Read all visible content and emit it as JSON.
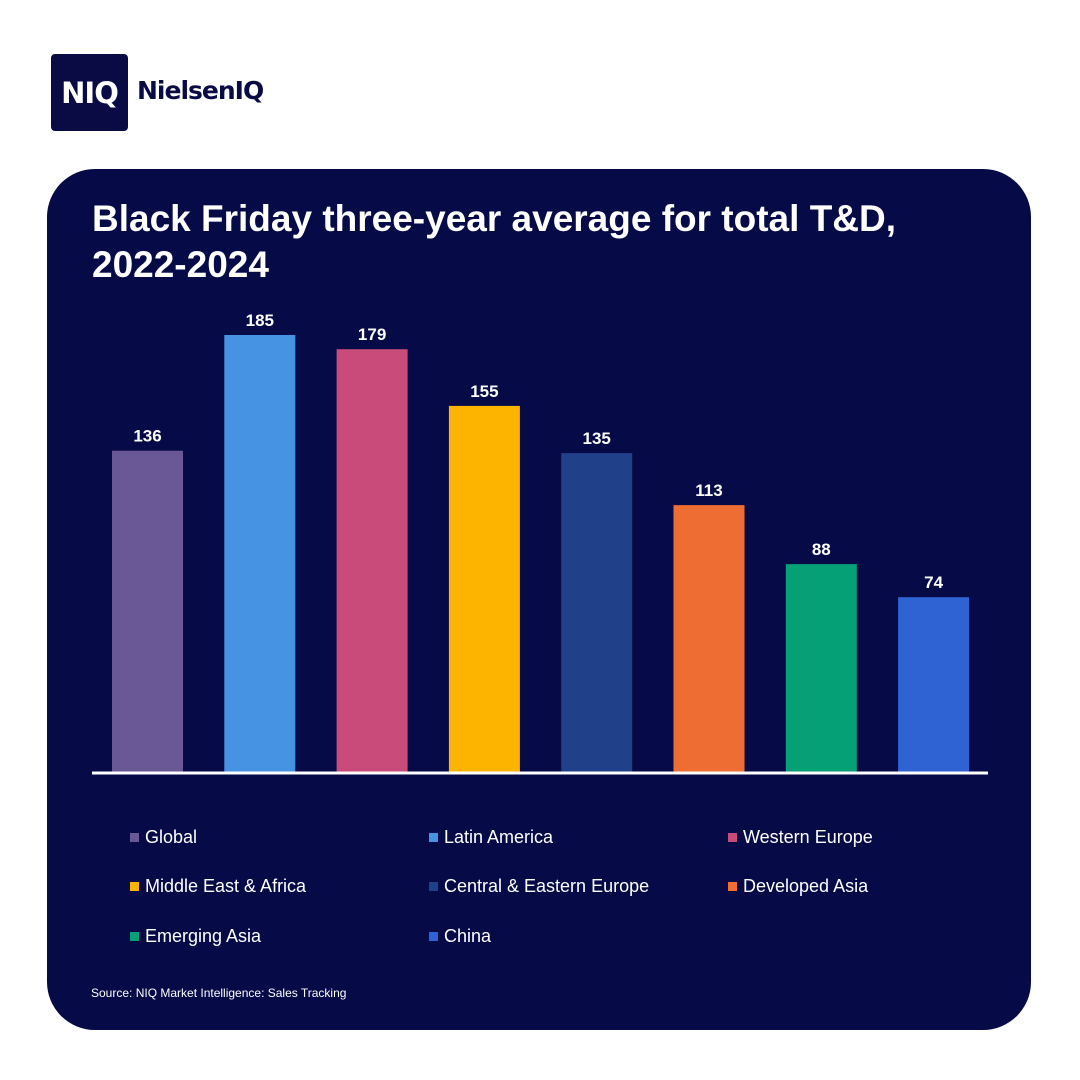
{
  "brand": {
    "logo_mark": "NIQ",
    "logo_word": "NielsenIQ"
  },
  "source": "Source: NIQ Market Intelligence: Sales Tracking",
  "colors": {
    "card_background": "#060a47",
    "brand_navy": "#0a0b45",
    "baseline": "#ffffff"
  },
  "chart_data": {
    "type": "bar",
    "title": "Black Friday three-year average for total T&D, 2022-2024",
    "xlabel": "",
    "ylabel": "",
    "ylim": [
      0,
      185
    ],
    "grid": false,
    "legend_position": "bottom",
    "categories": [
      "Global",
      "Latin America",
      "Western Europe",
      "Middle East & Africa",
      "Central & Eastern Europe",
      "Developed Asia",
      "Emerging Asia",
      "China"
    ],
    "values": [
      136,
      185,
      179,
      155,
      135,
      113,
      88,
      74
    ],
    "data_labels": [
      "136",
      "185",
      "179",
      "155",
      "135",
      "113",
      "88",
      "74"
    ],
    "colors": [
      "#6a5795",
      "#4593e2",
      "#c84b79",
      "#fdb400",
      "#21408a",
      "#ee6d32",
      "#06a077",
      "#2f63d4"
    ]
  }
}
